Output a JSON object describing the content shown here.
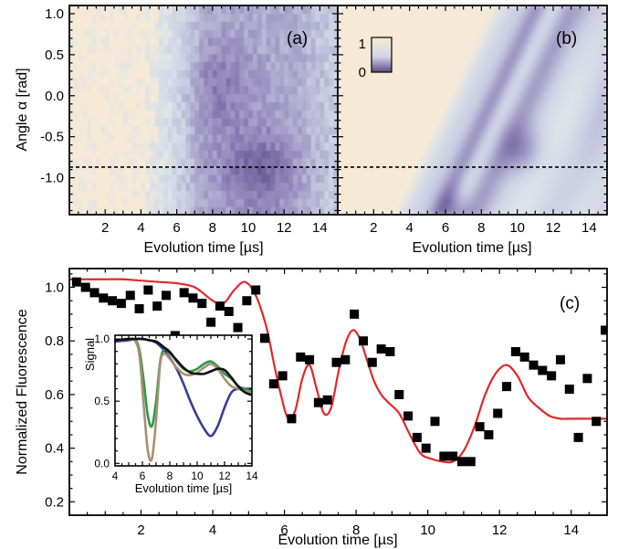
{
  "chart_data": [
    {
      "id": "a",
      "type": "heatmap",
      "panel_label": "(a)",
      "xlabel": "Evolution time [µs]",
      "ylabel": "Angle α [rad]",
      "xlim": [
        0,
        15
      ],
      "ylim": [
        -1.45,
        1.1
      ],
      "xticks": [
        2,
        4,
        6,
        8,
        10,
        12,
        14
      ],
      "yticks": [
        1.0,
        0.5,
        0.0,
        -0.5,
        -1.0
      ],
      "ytick_labels": [
        "1.0",
        "0.5",
        "0.0",
        "-0.5",
        "-1.0"
      ],
      "reference_line": {
        "y": -0.87,
        "style": "dashed"
      },
      "colorscale": {
        "low": "#5a4a8c",
        "high": "#f6ead6",
        "min": 0,
        "max": 1
      }
    },
    {
      "id": "b",
      "type": "heatmap",
      "panel_label": "(b)",
      "xlabel": "Evolution time [µs]",
      "xlim": [
        0,
        15
      ],
      "ylim": [
        -1.45,
        1.1
      ],
      "xticks": [
        2,
        4,
        6,
        8,
        10,
        12,
        14
      ],
      "reference_line": {
        "y": -0.87,
        "style": "dashed"
      },
      "colorbar": {
        "min_label": "0",
        "max_label": "1"
      },
      "colorscale": {
        "low": "#5a4a8c",
        "high": "#f6ead6",
        "min": 0,
        "max": 1
      }
    },
    {
      "id": "c",
      "type": "scatter",
      "panel_label": "(c)",
      "xlabel": "Evolution time [µs]",
      "ylabel": "Normalized Fluorescence",
      "xlim": [
        0,
        15
      ],
      "ylim": [
        0.15,
        1.07
      ],
      "xticks": [
        2,
        4,
        6,
        8,
        10,
        12,
        14
      ],
      "yticks": [
        0.2,
        0.4,
        0.6,
        0.8,
        1.0
      ],
      "ytick_labels": [
        "0.2",
        "0.4",
        "0.6",
        "0.8",
        "1.0"
      ],
      "series": [
        {
          "kind": "points",
          "marker": "square",
          "color": "#000000",
          "x": [
            0.2,
            0.45,
            0.7,
            0.95,
            1.2,
            1.45,
            1.7,
            1.95,
            2.2,
            2.45,
            2.7,
            2.95,
            3.2,
            3.45,
            3.7,
            3.95,
            4.2,
            4.45,
            4.7,
            4.95,
            5.2,
            5.45,
            5.7,
            5.95,
            6.2,
            6.45,
            6.7,
            6.95,
            7.2,
            7.45,
            7.7,
            7.95,
            8.2,
            8.45,
            8.7,
            8.95,
            9.2,
            9.45,
            9.7,
            9.95,
            10.2,
            10.45,
            10.7,
            10.95,
            11.2,
            11.45,
            11.7,
            11.95,
            12.2,
            12.45,
            12.7,
            12.95,
            13.2,
            13.45,
            13.7,
            13.95,
            14.2,
            14.45,
            14.7,
            14.95
          ],
          "y": [
            1.02,
            1.0,
            0.98,
            0.96,
            0.95,
            0.94,
            0.97,
            0.92,
            0.99,
            0.93,
            0.97,
            0.82,
            0.98,
            0.96,
            0.94,
            0.87,
            0.93,
            0.91,
            0.85,
            0.95,
            0.99,
            0.81,
            0.64,
            0.67,
            0.51,
            0.74,
            0.73,
            0.57,
            0.58,
            0.72,
            0.73,
            0.9,
            0.8,
            0.72,
            0.77,
            0.76,
            0.6,
            0.52,
            0.44,
            0.4,
            0.5,
            0.37,
            0.37,
            0.35,
            0.35,
            0.48,
            0.45,
            0.53,
            0.63,
            0.76,
            0.74,
            0.71,
            0.69,
            0.67,
            0.73,
            0.62,
            0.44,
            0.66,
            0.5,
            0.84
          ]
        },
        {
          "kind": "line",
          "color": "#e3272a",
          "x": [
            0.0,
            0.5,
            1.0,
            1.5,
            2.0,
            2.5,
            3.0,
            3.5,
            4.0,
            4.3,
            4.6,
            4.9,
            5.2,
            5.5,
            5.7,
            5.9,
            6.1,
            6.3,
            6.5,
            6.7,
            6.9,
            7.1,
            7.3,
            7.5,
            7.7,
            7.9,
            8.1,
            8.3,
            8.5,
            8.7,
            8.9,
            9.2,
            9.5,
            9.8,
            10.1,
            10.4,
            10.7,
            11.0,
            11.3,
            11.6,
            11.9,
            12.2,
            12.5,
            12.8,
            13.1,
            13.4,
            13.7,
            14.0,
            14.5,
            15.0
          ],
          "y": [
            1.03,
            1.03,
            1.03,
            1.03,
            1.025,
            1.02,
            1.015,
            1.0,
            0.95,
            0.94,
            0.99,
            1.02,
            0.97,
            0.85,
            0.72,
            0.6,
            0.51,
            0.54,
            0.66,
            0.71,
            0.62,
            0.53,
            0.55,
            0.68,
            0.79,
            0.84,
            0.81,
            0.73,
            0.65,
            0.6,
            0.57,
            0.53,
            0.45,
            0.38,
            0.36,
            0.35,
            0.35,
            0.39,
            0.48,
            0.6,
            0.68,
            0.71,
            0.67,
            0.59,
            0.55,
            0.52,
            0.51,
            0.51,
            0.51,
            0.51
          ]
        }
      ],
      "inset": {
        "ylabel": "Signal",
        "xlabel": "Evolution time [µs]",
        "xlim": [
          4,
          14
        ],
        "ylim": [
          -0.02,
          1.03
        ],
        "xticks": [
          4,
          6,
          8,
          10,
          12,
          14
        ],
        "yticks": [
          0.0,
          0.5,
          1.0
        ],
        "ytick_labels": [
          "0.0",
          "0.5",
          "1.0"
        ],
        "series": [
          {
            "color": "#3a3c9a",
            "x": [
              4.0,
              5.0,
              5.5,
              6.0,
              6.5,
              7.0,
              7.5,
              8.0,
              8.5,
              9.0,
              9.5,
              10.0,
              10.5,
              11.0,
              11.5,
              12.0,
              12.5,
              13.0,
              13.5,
              14.0
            ],
            "y": [
              0.98,
              0.99,
              1.0,
              1.0,
              0.99,
              0.97,
              0.92,
              0.85,
              0.76,
              0.64,
              0.5,
              0.38,
              0.28,
              0.22,
              0.3,
              0.45,
              0.57,
              0.6,
              0.6,
              0.6
            ]
          },
          {
            "color": "#2e9a44",
            "x": [
              4.0,
              5.0,
              5.5,
              5.8,
              6.1,
              6.4,
              6.7,
              7.0,
              7.3,
              7.6,
              8.0,
              8.5,
              9.0,
              9.5,
              10.0,
              10.5,
              11.0,
              11.5,
              12.0,
              12.5,
              13.0,
              13.5,
              14.0
            ],
            "y": [
              0.99,
              1.0,
              0.99,
              0.9,
              0.66,
              0.38,
              0.3,
              0.5,
              0.82,
              0.92,
              0.9,
              0.82,
              0.76,
              0.74,
              0.76,
              0.8,
              0.82,
              0.78,
              0.72,
              0.68,
              0.62,
              0.6,
              0.58
            ]
          },
          {
            "color": "#a89072",
            "x": [
              4.0,
              5.0,
              5.5,
              5.8,
              6.1,
              6.4,
              6.7,
              7.0,
              7.3,
              7.6,
              8.0,
              8.5,
              9.0,
              9.5,
              10.0,
              10.5,
              11.0,
              11.5,
              12.0,
              12.5,
              13.0,
              13.5,
              14.0
            ],
            "y": [
              0.99,
              1.0,
              0.98,
              0.85,
              0.46,
              0.1,
              0.04,
              0.35,
              0.8,
              0.88,
              0.84,
              0.77,
              0.72,
              0.71,
              0.73,
              0.77,
              0.8,
              0.76,
              0.68,
              0.62,
              0.6,
              0.58,
              0.57
            ]
          },
          {
            "color": "#111111",
            "x": [
              4.0,
              5.0,
              5.5,
              6.0,
              6.5,
              7.0,
              7.5,
              8.0,
              8.5,
              9.0,
              9.5,
              10.0,
              10.5,
              11.0,
              11.5,
              12.0,
              12.5,
              13.0,
              13.5,
              14.0
            ],
            "y": [
              0.99,
              1.0,
              1.0,
              1.0,
              0.99,
              0.98,
              0.94,
              0.89,
              0.83,
              0.77,
              0.73,
              0.72,
              0.72,
              0.74,
              0.76,
              0.75,
              0.69,
              0.62,
              0.57,
              0.55
            ]
          }
        ]
      }
    }
  ]
}
